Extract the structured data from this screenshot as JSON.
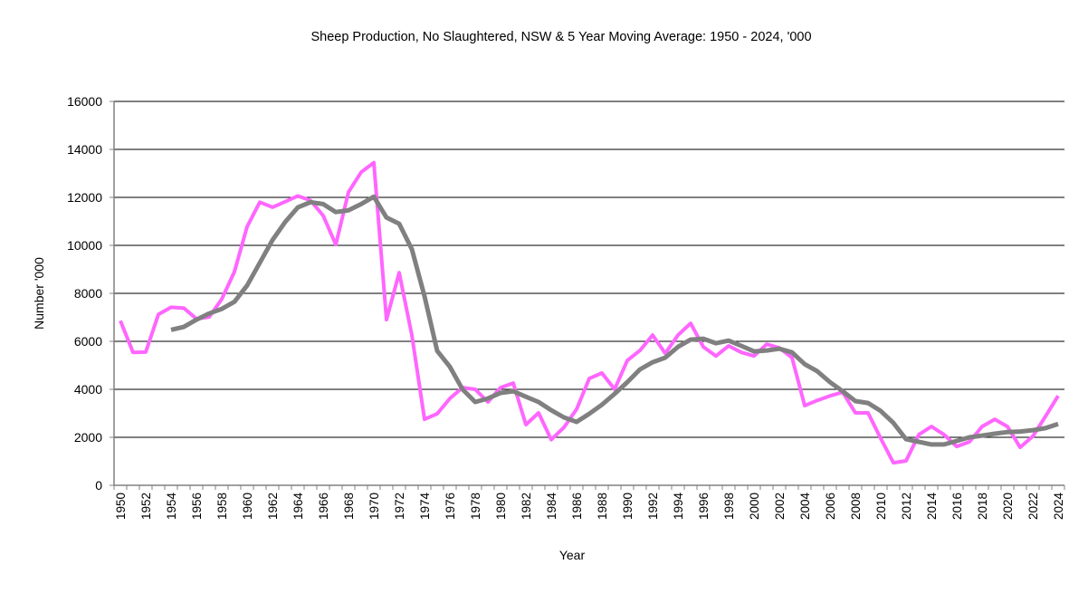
{
  "chart_data": {
    "type": "line",
    "title": "Sheep Production, No Slaughtered, NSW & 5 Year Moving Average: 1950 - 2024, '000",
    "xlabel": "Year",
    "ylabel": "Number '000",
    "ylim": [
      0,
      16000
    ],
    "yticks": [
      0,
      2000,
      4000,
      6000,
      8000,
      10000,
      12000,
      14000,
      16000
    ],
    "ytick_labels": [
      "0",
      "2000",
      "4000",
      "6000",
      "8000",
      "10000",
      "12000",
      "14000",
      "16000"
    ],
    "grid": "horizontal",
    "legend": "none",
    "x": [
      1950,
      1951,
      1952,
      1953,
      1954,
      1955,
      1956,
      1957,
      1958,
      1959,
      1960,
      1961,
      1962,
      1963,
      1964,
      1965,
      1966,
      1967,
      1968,
      1969,
      1970,
      1971,
      1972,
      1973,
      1974,
      1975,
      1976,
      1977,
      1978,
      1979,
      1980,
      1981,
      1982,
      1983,
      1984,
      1985,
      1986,
      1987,
      1988,
      1989,
      1990,
      1991,
      1992,
      1993,
      1994,
      1995,
      1996,
      1997,
      1998,
      1999,
      2000,
      2001,
      2002,
      2003,
      2004,
      2005,
      2006,
      2007,
      2008,
      2009,
      2010,
      2011,
      2012,
      2013,
      2014,
      2015,
      2016,
      2017,
      2018,
      2019,
      2020,
      2021,
      2022,
      2023,
      2024
    ],
    "xtick_labels": [
      "1950",
      "1952",
      "1954",
      "1956",
      "1958",
      "1960",
      "1962",
      "1964",
      "1966",
      "1968",
      "1970",
      "1972",
      "1974",
      "1976",
      "1978",
      "1980",
      "1982",
      "1984",
      "1986",
      "1988",
      "1990",
      "1992",
      "1994",
      "1996",
      "1998",
      "2000",
      "2002",
      "2004",
      "2006",
      "2008",
      "2010",
      "2012",
      "2014",
      "2016",
      "2018",
      "2020",
      "2022",
      "2024"
    ],
    "series": [
      {
        "name": "No Slaughtered",
        "color": "#ff66ff",
        "values": [
          6860,
          5540,
          5550,
          7120,
          7420,
          7390,
          6940,
          7010,
          7760,
          8900,
          10780,
          11800,
          11590,
          11820,
          12060,
          11870,
          11240,
          10030,
          12220,
          13050,
          13450,
          6900,
          8860,
          6260,
          2750,
          2980,
          3620,
          4070,
          4000,
          3470,
          4070,
          4260,
          2530,
          3020,
          1900,
          2410,
          3170,
          4450,
          4680,
          4000,
          5200,
          5620,
          6260,
          5500,
          6260,
          6750,
          5770,
          5390,
          5810,
          5540,
          5390,
          5880,
          5730,
          5320,
          3320,
          3540,
          3730,
          3880,
          3020,
          3020,
          1950,
          940,
          1020,
          2110,
          2450,
          2110,
          1620,
          1810,
          2450,
          2750,
          2450,
          1580,
          2040,
          2870,
          3730
        ]
      },
      {
        "name": "5 Year Moving Average",
        "color": "#808080",
        "values": [
          null,
          null,
          null,
          null,
          6480,
          6600,
          6900,
          7160,
          7350,
          7650,
          8330,
          9270,
          10220,
          10970,
          11580,
          11800,
          11720,
          11390,
          11460,
          11720,
          12030,
          11160,
          10900,
          9840,
          7880,
          5600,
          4940,
          4000,
          3470,
          3620,
          3850,
          3920,
          3690,
          3470,
          3130,
          2830,
          2640,
          2980,
          3360,
          3810,
          4300,
          4830,
          5130,
          5320,
          5770,
          6070,
          6110,
          5920,
          6030,
          5810,
          5580,
          5620,
          5690,
          5540,
          5050,
          4750,
          4300,
          3920,
          3510,
          3430,
          3100,
          2600,
          1920,
          1810,
          1700,
          1700,
          1850,
          2000,
          2070,
          2150,
          2220,
          2240,
          2300,
          2380,
          2560
        ]
      }
    ]
  }
}
